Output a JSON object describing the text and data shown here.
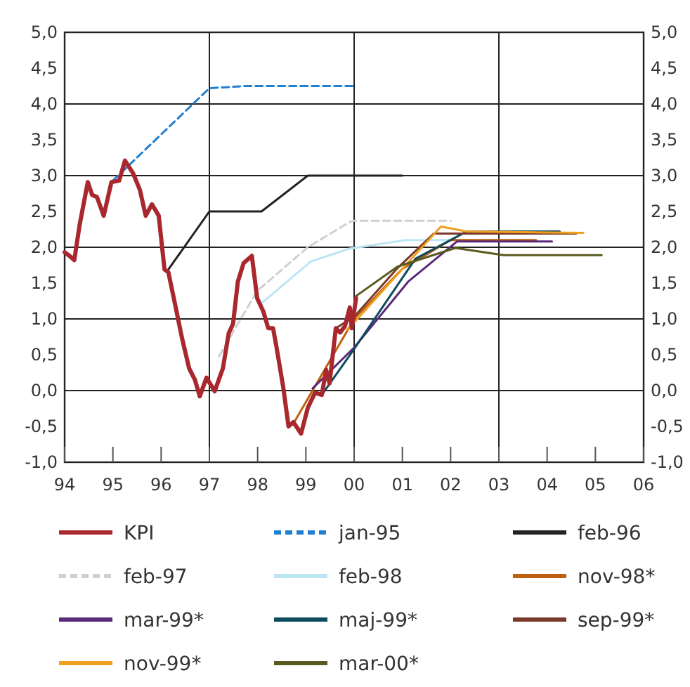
{
  "chart_data": {
    "type": "line",
    "xlim": [
      1994,
      2006
    ],
    "xticks": [
      {
        "value": 1994,
        "label": "94"
      },
      {
        "value": 1995,
        "label": "95"
      },
      {
        "value": 1996,
        "label": "96"
      },
      {
        "value": 1997,
        "label": "97"
      },
      {
        "value": 1998,
        "label": "98"
      },
      {
        "value": 1999,
        "label": "99"
      },
      {
        "value": 2000,
        "label": "00"
      },
      {
        "value": 2001,
        "label": "01"
      },
      {
        "value": 2002,
        "label": "02"
      },
      {
        "value": 2003,
        "label": "03"
      },
      {
        "value": 2004,
        "label": "04"
      },
      {
        "value": 2005,
        "label": "05"
      },
      {
        "value": 2006,
        "label": "06"
      }
    ],
    "ylim": [
      -1,
      5
    ],
    "yticks": [
      {
        "value": -1,
        "label": "-1,0"
      },
      {
        "value": -0.5,
        "label": "-0,5"
      },
      {
        "value": 0,
        "label": "0,0"
      },
      {
        "value": 0.5,
        "label": "0,5"
      },
      {
        "value": 1,
        "label": "1,0"
      },
      {
        "value": 1.5,
        "label": "1,5"
      },
      {
        "value": 2,
        "label": "2,0"
      },
      {
        "value": 2.5,
        "label": "2,5"
      },
      {
        "value": 3,
        "label": "3,0"
      },
      {
        "value": 3.5,
        "label": "3,5"
      },
      {
        "value": 4,
        "label": "4,0"
      },
      {
        "value": 4.5,
        "label": "4,5"
      },
      {
        "value": 5,
        "label": "5,0"
      }
    ],
    "y2lim": [
      -1,
      5
    ],
    "y2ticks": [
      {
        "value": -1,
        "label": "-1,0"
      },
      {
        "value": -0.5,
        "label": "-0,5"
      },
      {
        "value": 0,
        "label": "0,0"
      },
      {
        "value": 0.5,
        "label": "0,5"
      },
      {
        "value": 1,
        "label": "1,0"
      },
      {
        "value": 1.5,
        "label": "1,5"
      },
      {
        "value": 2,
        "label": "2,0"
      },
      {
        "value": 2.5,
        "label": "2,5"
      },
      {
        "value": 3,
        "label": "3,0"
      },
      {
        "value": 3.5,
        "label": "3,5"
      },
      {
        "value": 4,
        "label": "4,0"
      },
      {
        "value": 4.5,
        "label": "4,5"
      },
      {
        "value": 5,
        "label": "5,0"
      }
    ],
    "grid": true,
    "legend": "bottom",
    "series": [
      {
        "name": "KPI",
        "color": "#a8282e",
        "x": [
          1994.0,
          1994.1,
          1994.2,
          1994.31,
          1994.48,
          1994.57,
          1994.67,
          1994.81,
          1994.97,
          1995.13,
          1995.25,
          1995.42,
          1995.56,
          1995.68,
          1995.81,
          1995.95,
          1996.07,
          1996.15,
          1996.29,
          1996.43,
          1996.58,
          1996.7,
          1996.8,
          1996.94,
          1997.11,
          1997.28,
          1997.4,
          1997.49,
          1997.59,
          1997.71,
          1997.88,
          1997.99,
          1998.12,
          1998.22,
          1998.32,
          1998.39,
          1998.53,
          1998.64,
          1998.74,
          1998.9,
          1999.04,
          1999.19,
          1999.33,
          1999.42,
          1999.49,
          1999.62,
          1999.71,
          1999.81,
          1999.91,
          1999.95,
          2000.04
        ],
        "values": [
          1.93,
          1.88,
          1.82,
          2.31,
          2.91,
          2.73,
          2.7,
          2.44,
          2.91,
          2.93,
          3.21,
          3.03,
          2.8,
          2.44,
          2.6,
          2.44,
          1.69,
          1.65,
          1.2,
          0.74,
          0.31,
          0.15,
          -0.08,
          0.18,
          -0.01,
          0.31,
          0.8,
          0.93,
          1.52,
          1.78,
          1.88,
          1.29,
          1.1,
          0.87,
          0.87,
          0.61,
          0.05,
          -0.5,
          -0.44,
          -0.6,
          -0.24,
          -0.03,
          -0.06,
          0.29,
          0.1,
          0.87,
          0.81,
          0.9,
          1.16,
          0.87,
          1.29
        ]
      },
      {
        "name": "jan-95",
        "color": "#1f7fd0",
        "line_style": "dashed",
        "x": [
          1995.0,
          1997.0,
          1997.75,
          2000.0
        ],
        "values": [
          2.93,
          4.22,
          4.25,
          4.25
        ]
      },
      {
        "name": "feb-96",
        "color": "#222222",
        "x": [
          1996.15,
          1997.0,
          1998.08,
          1999.04,
          2001.0
        ],
        "values": [
          1.69,
          2.5,
          2.5,
          3.0,
          3.0
        ]
      },
      {
        "name": "feb-97",
        "color": "#d0d0d0",
        "line_style": "dashed",
        "x": [
          1997.2,
          1997.99,
          1999.04,
          1999.9,
          2000.0,
          2002.0
        ],
        "values": [
          0.48,
          1.39,
          2.0,
          2.35,
          2.37,
          2.37
        ]
      },
      {
        "name": "feb-98",
        "color": "#bde6f5",
        "x": [
          1998.1,
          1999.1,
          1999.9,
          2001.07,
          2002.0
        ],
        "values": [
          1.23,
          1.8,
          1.98,
          2.1,
          2.1
        ]
      },
      {
        "name": "nov-98*",
        "color": "#c0600a",
        "x": [
          1998.75,
          2000.0,
          2001.0,
          2002.0,
          2003.77
        ],
        "values": [
          -0.45,
          1.0,
          1.7,
          2.1,
          2.1
        ]
      },
      {
        "name": "mar-99*",
        "color": "#5a2a7a",
        "x": [
          1999.14,
          2000.0,
          2001.12,
          2002.13,
          2004.1
        ],
        "values": [
          0.03,
          0.6,
          1.52,
          2.08,
          2.08
        ]
      },
      {
        "name": "maj-99*",
        "color": "#0e4a5e",
        "x": [
          1999.33,
          2000.0,
          2001.27,
          2002.33,
          2004.26
        ],
        "values": [
          -0.06,
          0.58,
          1.84,
          2.22,
          2.22
        ]
      },
      {
        "name": "sep-99*",
        "color": "#7a3a2a",
        "x": [
          1999.62,
          2000.0,
          2000.9,
          2001.65,
          2004.6
        ],
        "values": [
          0.87,
          1.03,
          1.71,
          2.19,
          2.19
        ]
      },
      {
        "name": "nov-99*",
        "color": "#f0a020",
        "x": [
          1999.85,
          2000.0,
          2001.27,
          2001.8,
          2002.33,
          2004.75
        ],
        "values": [
          0.85,
          0.95,
          1.9,
          2.29,
          2.22,
          2.2
        ]
      },
      {
        "name": "mar-00*",
        "color": "#5a5a20",
        "x": [
          2000.04,
          2000.9,
          2002.1,
          2003.1,
          2005.13
        ],
        "values": [
          1.32,
          1.73,
          1.99,
          1.89,
          1.89
        ]
      }
    ]
  }
}
